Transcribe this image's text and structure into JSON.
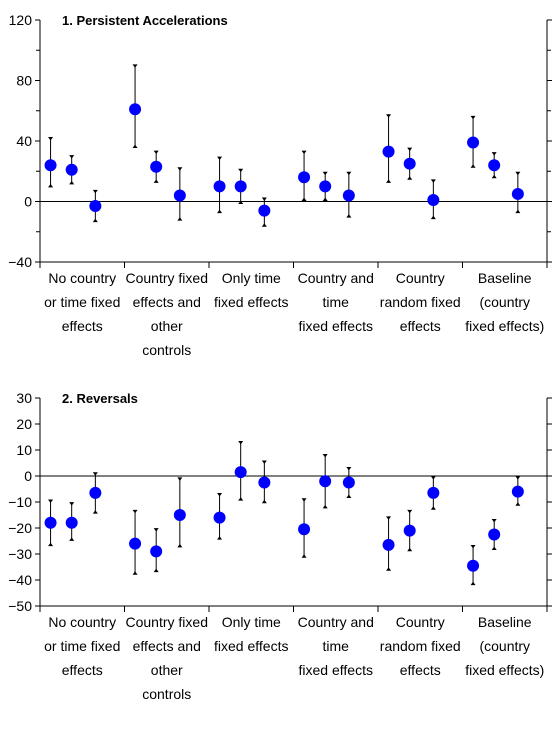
{
  "colors": {
    "marker": "#0000ff",
    "axis": "#000000"
  },
  "chart_data": [
    {
      "type": "scatter",
      "title": "1. Persistent Accelerations",
      "ylim": [
        -40,
        120
      ],
      "yticks": [
        -40,
        0,
        40,
        80,
        120
      ],
      "grid": false,
      "categories": [
        [
          "No country",
          "or time fixed",
          "effects"
        ],
        [
          "Country fixed",
          "effects and",
          "other",
          "controls"
        ],
        [
          "Only time",
          "fixed effects"
        ],
        [
          "Country and",
          "time",
          "fixed effects"
        ],
        [
          "Country",
          "random fixed",
          "effects"
        ],
        [
          "Baseline",
          "(country",
          "fixed effects)"
        ]
      ],
      "groups": [
        {
          "points": [
            {
              "y": 24,
              "lo": 11,
              "hi": 41
            },
            {
              "y": 21,
              "lo": 13,
              "hi": 29
            },
            {
              "y": -3,
              "lo": -12,
              "hi": 6
            }
          ]
        },
        {
          "points": [
            {
              "y": 61,
              "lo": 37,
              "hi": 89
            },
            {
              "y": 23,
              "lo": 14,
              "hi": 32
            },
            {
              "y": 4,
              "lo": -11,
              "hi": 21
            }
          ]
        },
        {
          "points": [
            {
              "y": 10,
              "lo": -6,
              "hi": 28
            },
            {
              "y": 10,
              "lo": 0,
              "hi": 20
            },
            {
              "y": -6,
              "lo": -15,
              "hi": 1
            }
          ]
        },
        {
          "points": [
            {
              "y": 16,
              "lo": 2,
              "hi": 32
            },
            {
              "y": 10,
              "lo": 2,
              "hi": 18
            },
            {
              "y": 4,
              "lo": -9,
              "hi": 18
            }
          ]
        },
        {
          "points": [
            {
              "y": 33,
              "lo": 14,
              "hi": 56
            },
            {
              "y": 25,
              "lo": 16,
              "hi": 34
            },
            {
              "y": 1,
              "lo": -10,
              "hi": 13
            }
          ]
        },
        {
          "points": [
            {
              "y": 39,
              "lo": 24,
              "hi": 55
            },
            {
              "y": 24,
              "lo": 17,
              "hi": 31
            },
            {
              "y": 5,
              "lo": -6,
              "hi": 18
            }
          ]
        }
      ]
    },
    {
      "type": "scatter",
      "title": "2. Reversals",
      "ylim": [
        -50,
        30
      ],
      "yticks": [
        -50,
        -40,
        -30,
        -20,
        -10,
        0,
        10,
        20,
        30
      ],
      "grid": false,
      "categories": [
        [
          "No country",
          "or time fixed",
          "effects"
        ],
        [
          "Country fixed",
          "effects and",
          "other",
          "controls"
        ],
        [
          "Only time",
          "fixed effects"
        ],
        [
          "Country and",
          "time",
          "fixed effects"
        ],
        [
          "Country",
          "random fixed",
          "effects"
        ],
        [
          "Baseline",
          "(country",
          "fixed effects)"
        ]
      ],
      "groups": [
        {
          "points": [
            {
              "y": -18,
              "lo": -26,
              "hi": -10
            },
            {
              "y": -18,
              "lo": -24,
              "hi": -11
            },
            {
              "y": -6.5,
              "lo": -13.5,
              "hi": 0.5
            }
          ]
        },
        {
          "points": [
            {
              "y": -26,
              "lo": -37,
              "hi": -14
            },
            {
              "y": -29,
              "lo": -36,
              "hi": -21
            },
            {
              "y": -15,
              "lo": -26.5,
              "hi": -1.5
            }
          ]
        },
        {
          "points": [
            {
              "y": -16,
              "lo": -23.5,
              "hi": -7.5
            },
            {
              "y": 1.5,
              "lo": -8.5,
              "hi": 12.5
            },
            {
              "y": -2.5,
              "lo": -9.5,
              "hi": 5
            }
          ]
        },
        {
          "points": [
            {
              "y": -20.5,
              "lo": -30.5,
              "hi": -9.5
            },
            {
              "y": -2,
              "lo": -11.5,
              "hi": 7.5
            },
            {
              "y": -2.5,
              "lo": -7.5,
              "hi": 2.5
            }
          ]
        },
        {
          "points": [
            {
              "y": -26.5,
              "lo": -35.5,
              "hi": -16.5
            },
            {
              "y": -21,
              "lo": -28,
              "hi": -14
            },
            {
              "y": -6.5,
              "lo": -12,
              "hi": -1
            }
          ]
        },
        {
          "points": [
            {
              "y": -34.5,
              "lo": -41,
              "hi": -27.5
            },
            {
              "y": -22.5,
              "lo": -27.5,
              "hi": -17.5
            },
            {
              "y": -6,
              "lo": -10.5,
              "hi": -1
            }
          ]
        }
      ]
    }
  ]
}
